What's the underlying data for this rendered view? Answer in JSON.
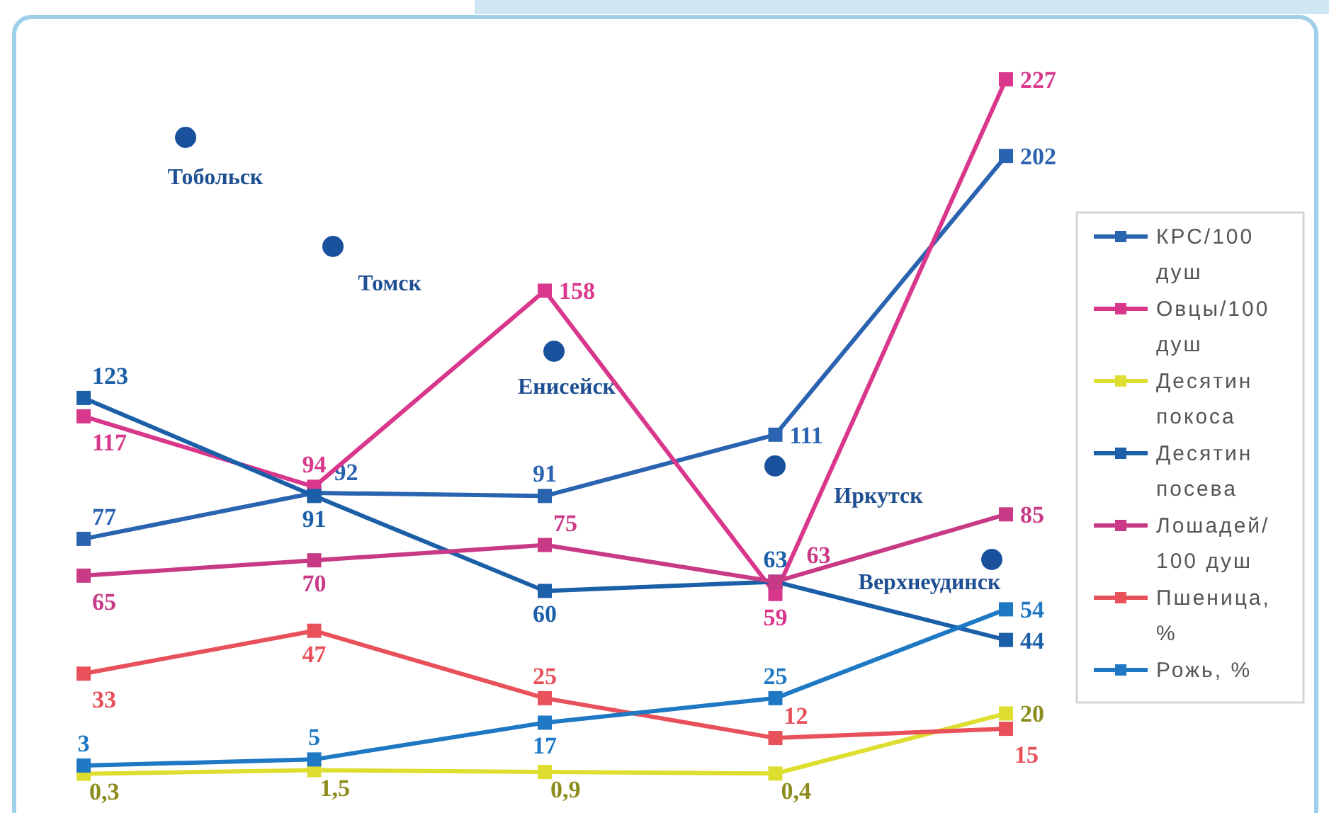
{
  "chart_data": {
    "type": "line",
    "categories": [
      null,
      null,
      null,
      null,
      null
    ],
    "series": [
      {
        "name": "КРС/100 душ",
        "color": "#2a63b0",
        "values": [
          77,
          92,
          91,
          111,
          202
        ],
        "value_labels": [
          "77",
          "92",
          "91",
          "111",
          "202"
        ]
      },
      {
        "name": "Овцы/100 душ",
        "color": "#d9378c",
        "values": [
          117,
          94,
          158,
          59,
          227
        ],
        "value_labels": [
          "117",
          "94",
          "158",
          "59",
          "227"
        ]
      },
      {
        "name": "Десятин покоса",
        "color": "#dede30",
        "values": [
          0.3,
          1.5,
          0.9,
          0.4,
          20
        ],
        "value_labels": [
          "0,3",
          "1,5",
          "0,9",
          "0,4",
          "20"
        ]
      },
      {
        "name": "Десятин посева",
        "color": "#1b5fa8",
        "values": [
          123,
          91,
          60,
          63,
          44
        ],
        "value_labels": [
          "123",
          "91",
          "60",
          "63",
          "44"
        ]
      },
      {
        "name": "Лошадей/100 душ",
        "color": "#c93a86",
        "values": [
          65,
          70,
          75,
          63,
          85
        ],
        "value_labels": [
          "65",
          "70",
          "75",
          "63",
          "85"
        ]
      },
      {
        "name": "Пшеница, %",
        "color": "#e8505a",
        "values": [
          33,
          47,
          25,
          12,
          15
        ],
        "value_labels": [
          "33",
          "47",
          "25",
          "12",
          "15"
        ]
      },
      {
        "name": "Рожь, %",
        "color": "#1e78c4",
        "values": [
          3,
          5,
          17,
          25,
          54
        ],
        "value_labels": [
          "3",
          "5",
          "17",
          "25",
          "54"
        ]
      }
    ],
    "annotations": [
      "Тобольск",
      "Томск",
      "Енисейск",
      "Иркутск",
      "Верхнеудинск"
    ],
    "legend": "right",
    "marker": "square",
    "line_style": "solid"
  }
}
